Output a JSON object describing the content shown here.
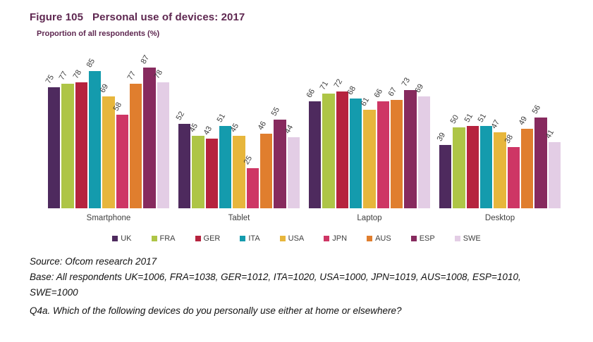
{
  "title": {
    "figure_label": "Figure 105",
    "text": "Personal use of devices: 2017"
  },
  "subtitle": "Proportion of all respondents (%)",
  "colors": {
    "title": "#5E2750",
    "value_label": "#3d3d3d",
    "footer_text": "#121212"
  },
  "chart_data": {
    "type": "bar",
    "title": "Figure 105  Personal use of devices: 2017",
    "subtitle": "Proportion of all respondents (%)",
    "categories": [
      "Smartphone",
      "Tablet",
      "Laptop",
      "Desktop"
    ],
    "series": [
      {
        "name": "UK",
        "color": "#4E2A5E",
        "values": [
          75,
          52,
          66,
          39
        ]
      },
      {
        "name": "FRA",
        "color": "#AEC546",
        "values": [
          77,
          45,
          71,
          50
        ]
      },
      {
        "name": "GER",
        "color": "#B6233E",
        "values": [
          78,
          43,
          72,
          51
        ]
      },
      {
        "name": "ITA",
        "color": "#149BAD",
        "values": [
          85,
          51,
          68,
          51
        ]
      },
      {
        "name": "USA",
        "color": "#E7B63C",
        "values": [
          69,
          45,
          61,
          47
        ]
      },
      {
        "name": "JPN",
        "color": "#CE3665",
        "values": [
          58,
          25,
          66,
          38
        ]
      },
      {
        "name": "AUS",
        "color": "#E07E2E",
        "values": [
          77,
          46,
          67,
          49
        ]
      },
      {
        "name": "ESP",
        "color": "#872A5E",
        "values": [
          87,
          55,
          73,
          56
        ]
      },
      {
        "name": "SWE",
        "color": "#E3CDE5",
        "values": [
          78,
          44,
          69,
          41
        ]
      }
    ],
    "ylim": [
      0,
      100
    ],
    "grid": false,
    "value_labels": true,
    "value_label_rotation": -60,
    "legend_position": "bottom"
  },
  "footer": {
    "source": "Source: Ofcom research 2017",
    "base_line1": "Base: All respondents UK=1006, FRA=1038, GER=1012, ITA=1020, USA=1000, JPN=1019, AUS=1008, ESP=1010,",
    "base_line2": "SWE=1000",
    "question": "Q4a. Which of the following devices do you personally use either at home or elsewhere?"
  }
}
